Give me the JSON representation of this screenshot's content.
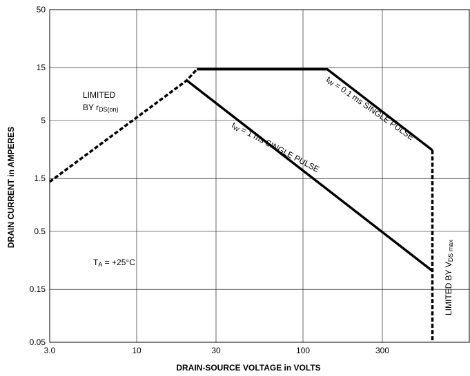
{
  "chart_data": {
    "type": "line",
    "title": "",
    "xlabel": "DRAIN-SOURCE VOLTAGE in VOLTS",
    "ylabel": "DRAIN CURRENT in AMPERES",
    "x_scale": "log",
    "y_scale": "log",
    "xlim": [
      3.0,
      1000
    ],
    "ylim": [
      0.05,
      50
    ],
    "x_ticks": [
      3.0,
      10,
      30,
      100,
      300
    ],
    "x_tick_labels": [
      "3.0",
      "10",
      "30",
      "100",
      "300"
    ],
    "y_ticks": [
      0.05,
      0.15,
      0.5,
      1.5,
      5,
      15,
      50
    ],
    "y_tick_labels": [
      "0.05",
      "0.15",
      "0.5",
      "1.5",
      "5",
      "15",
      "50"
    ],
    "grid": true,
    "series": [
      {
        "style": "dashed",
        "label_main": "LIMITED",
        "label_by": "BY r",
        "label_sub": "DS(on)",
        "points": [
          [
            3.0,
            1.4
          ],
          [
            20,
            11.5
          ],
          [
            23,
            14.5
          ]
        ]
      },
      {
        "style": "solid",
        "label_pre": "t",
        "label_sub": "W",
        "label_post": " = 0.1 ms SINGLE PULSE",
        "points": [
          [
            23,
            14.5
          ],
          [
            140,
            14.5
          ],
          [
            600,
            2.7
          ]
        ]
      },
      {
        "style": "solid",
        "label_pre": "t",
        "label_sub": "W",
        "label_post": " = 1 ms SINGLE PULSE",
        "points": [
          [
            20,
            11.5
          ],
          [
            600,
            0.22
          ]
        ]
      },
      {
        "style": "dashed",
        "label_pre": "LIMITED BY V",
        "label_sub": "DS max",
        "points": [
          [
            600,
            2.7
          ],
          [
            600,
            0.05
          ]
        ]
      }
    ],
    "annotations": {
      "temp_pre": "T",
      "temp_sub": "A",
      "temp_post": " = +25°C"
    }
  }
}
